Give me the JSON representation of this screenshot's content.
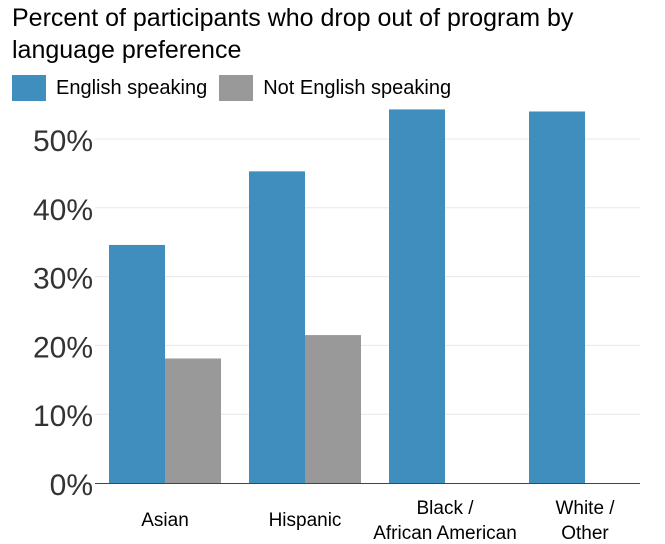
{
  "chart_data": {
    "type": "bar",
    "title": "Percent of participants who drop out of program by language preference",
    "xlabel": "",
    "ylabel": "",
    "categories": [
      "Asian",
      "Hispanic",
      "Black / African American",
      "White / Other"
    ],
    "series": [
      {
        "name": "English speaking",
        "color": "#3f8ebd",
        "values": [
          34.6,
          45.3,
          54.3,
          54.0
        ]
      },
      {
        "name": "Not English speaking",
        "color": "#999999",
        "values": [
          18.1,
          21.5,
          null,
          null
        ]
      }
    ],
    "ylim": [
      0,
      55
    ],
    "yticks": [
      0,
      10,
      20,
      30,
      40,
      50
    ],
    "ytick_labels": [
      "0%",
      "10%",
      "20%",
      "30%",
      "40%",
      "50%"
    ],
    "grid": true,
    "legend_position": "top-left"
  }
}
